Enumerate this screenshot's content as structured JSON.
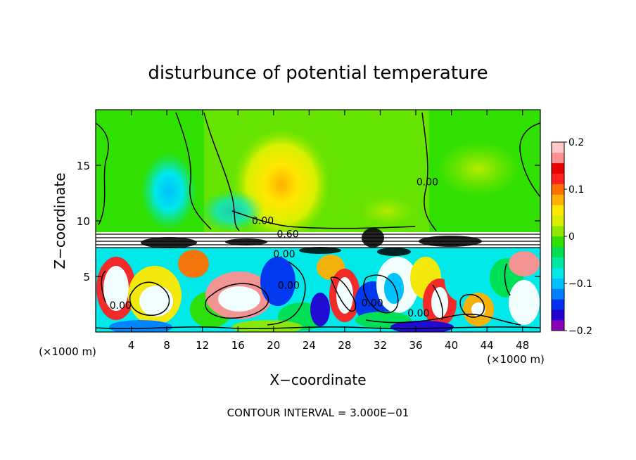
{
  "chart_data": {
    "type": "heatmap",
    "title": "disturbunce of potential temperature",
    "xlabel": "X−coordinate",
    "ylabel": "Z−coordinate",
    "x_unit_left": "(×1000 m)",
    "x_unit_right": "(×1000 m)",
    "xlim": [
      0,
      50
    ],
    "ylim": [
      0,
      20
    ],
    "x_ticks": [
      4,
      8,
      12,
      16,
      20,
      24,
      28,
      32,
      36,
      40,
      44,
      48
    ],
    "x_tick_labels": [
      "4",
      "8",
      "12",
      "16",
      "20",
      "24",
      "28",
      "32",
      "36",
      "40",
      "44",
      "48"
    ],
    "y_ticks": [
      5,
      10,
      15
    ],
    "y_tick_labels": [
      "5",
      "10",
      "15"
    ],
    "footer": "CONTOUR INTERVAL = 3.000E−01",
    "colorbar": {
      "range": [
        -0.2,
        0.2
      ],
      "tick_values": [
        0.2,
        0.1,
        0,
        -0.1,
        -0.2
      ],
      "tick_labels": [
        "0.2",
        "0.1",
        "0",
        "−0.1",
        "−0.2"
      ],
      "colors": [
        "#8a00b8",
        "#2200d0",
        "#0030f0",
        "#0080ff",
        "#00c0ff",
        "#00e8e8",
        "#00e8a0",
        "#00e050",
        "#30e000",
        "#90e800",
        "#d8f000",
        "#ffe800",
        "#ffb000",
        "#ff7000",
        "#ff2020",
        "#e80000",
        "#ff9090",
        "#ffc8c8"
      ]
    },
    "contour_labels": [
      {
        "text": "0.00",
        "x": 18.8,
        "z": 9.7
      },
      {
        "text": "0.60",
        "x": 21.6,
        "z": 8.5
      },
      {
        "text": "0.00",
        "x": 21.2,
        "z": 6.7
      },
      {
        "text": "0.00",
        "x": 21.7,
        "z": 3.9
      },
      {
        "text": "0.00",
        "x": 2.8,
        "z": 2.1
      },
      {
        "text": "0.00",
        "x": 31.1,
        "z": 2.3
      },
      {
        "text": "0.00",
        "x": 36.3,
        "z": 1.4
      },
      {
        "text": "0.00",
        "x": 37.3,
        "z": 13.2
      }
    ]
  }
}
